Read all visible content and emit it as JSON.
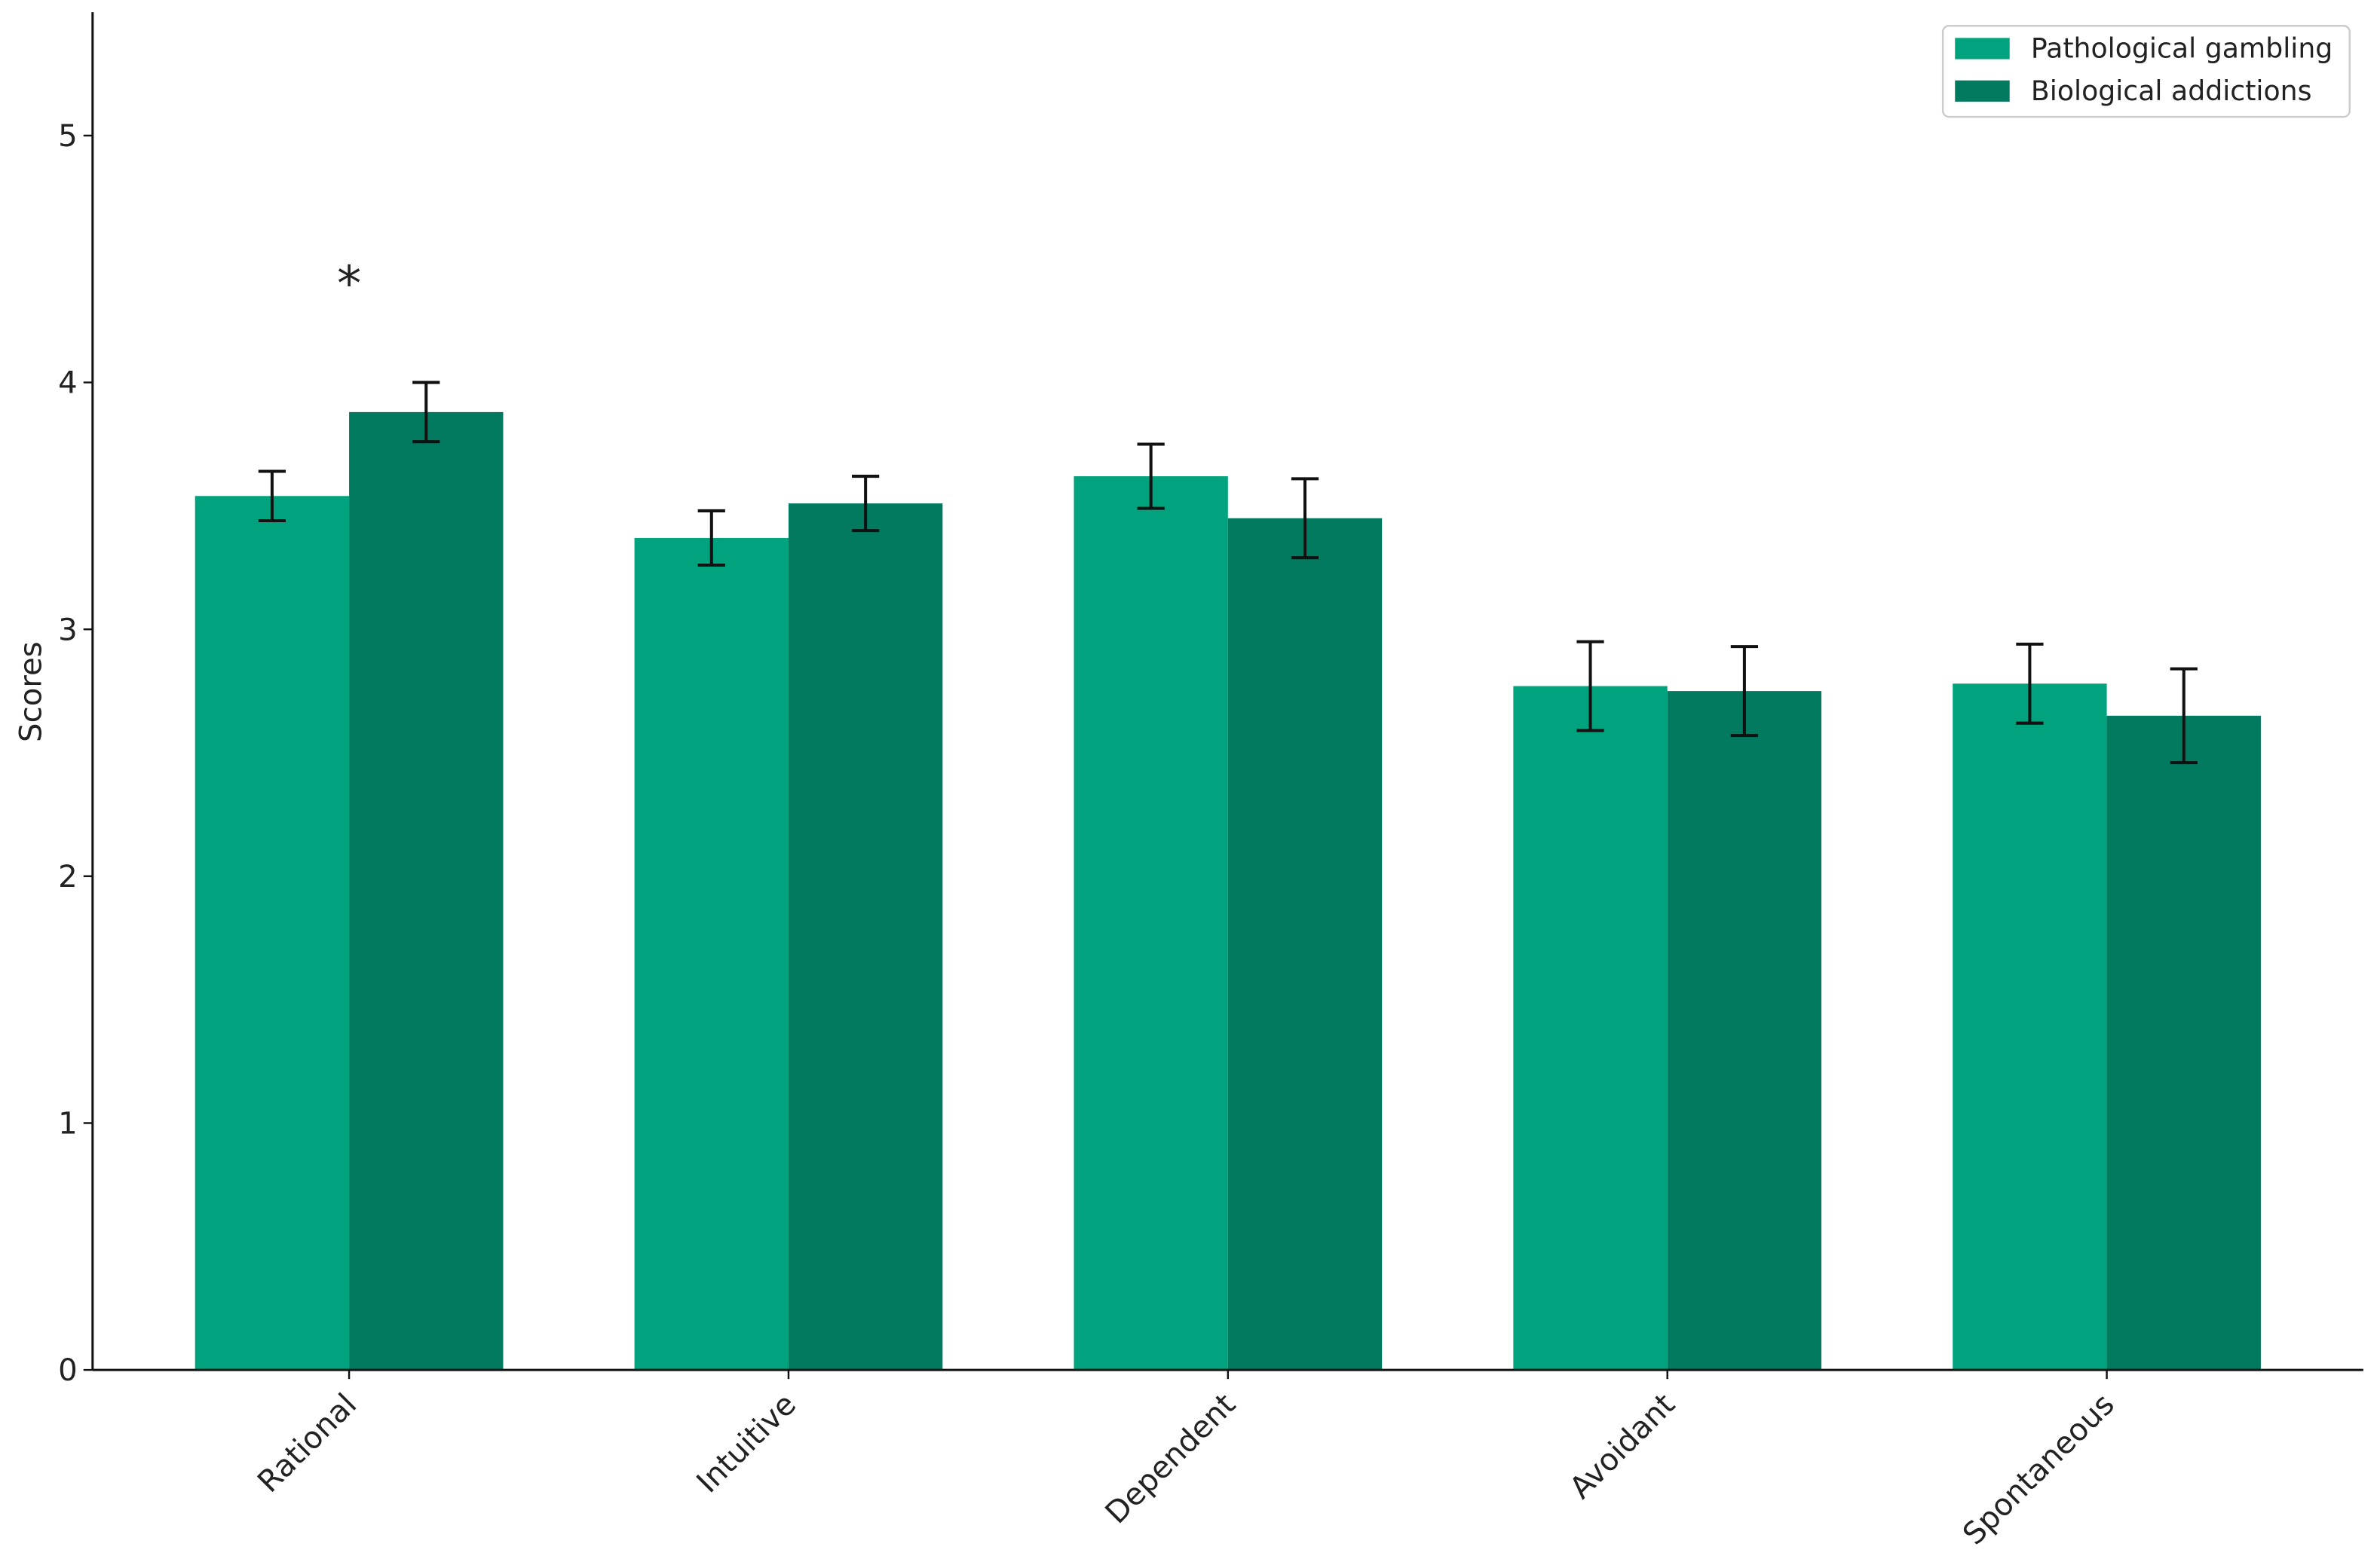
{
  "chart_data": {
    "type": "bar",
    "y_label": "Scores",
    "categories": [
      "Rational",
      "Intuitive",
      "Dependent",
      "Avoidant",
      "Spontaneous"
    ],
    "series": [
      {
        "name": "Pathological gambling",
        "color": "#00a37e",
        "values": [
          3.54,
          3.37,
          3.62,
          2.77,
          2.78
        ],
        "errors": [
          0.1,
          0.11,
          0.13,
          0.18,
          0.16
        ]
      },
      {
        "name": "Biological addictions",
        "color": "#027a5f",
        "values": [
          3.88,
          3.51,
          3.45,
          2.75,
          2.65
        ],
        "errors": [
          0.12,
          0.11,
          0.16,
          0.18,
          0.19
        ]
      }
    ],
    "annotations": [
      {
        "text": "*",
        "category": 0
      }
    ],
    "ylim": [
      0,
      5.5
    ],
    "yticks": [
      0,
      1,
      2,
      3,
      4,
      5
    ],
    "grid": false,
    "legend": "upper right"
  }
}
